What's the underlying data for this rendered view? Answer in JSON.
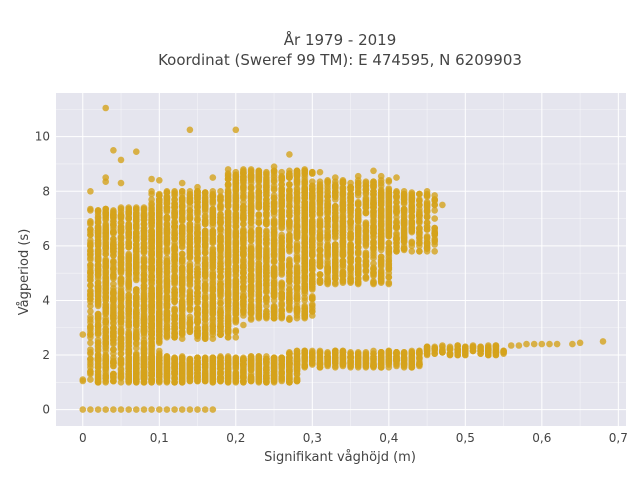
{
  "chart_data": {
    "type": "scatter",
    "title_line1": "År 1979 - 2019",
    "title_line2": "Koordinat (Sweref 99 TM): E 474595, N 6209903",
    "xlabel": "Signifikant våghöjd (m)",
    "ylabel": "Vågperiod (s)",
    "xlim": [
      -0.035,
      0.71
    ],
    "ylim": [
      -0.6,
      11.6
    ],
    "grid": true,
    "legend": "none",
    "x_ticks": [
      0,
      0.1,
      0.2,
      0.3,
      0.4,
      0.5,
      0.6,
      0.7
    ],
    "x_tick_labels": [
      "0",
      "0,1",
      "0,2",
      "0,3",
      "0,4",
      "0,5",
      "0,6",
      "0,7"
    ],
    "y_ticks": [
      0,
      2,
      4,
      6,
      8,
      10
    ],
    "y_tick_labels": [
      "0",
      "2",
      "4",
      "6",
      "8",
      "10"
    ],
    "colors": {
      "marker": "#d4a21c",
      "plot_bg": "#e5e5ee",
      "grid": "#ffffff"
    },
    "series": [
      {
        "points": [
          [
            0,
            0
          ],
          [
            0.01,
            0
          ],
          [
            0.02,
            0
          ],
          [
            0.03,
            0
          ],
          [
            0.04,
            0
          ],
          [
            0.05,
            0
          ],
          [
            0.06,
            0
          ],
          [
            0.07,
            0
          ],
          [
            0.08,
            0
          ],
          [
            0.09,
            0
          ],
          [
            0.1,
            0
          ],
          [
            0.11,
            0
          ],
          [
            0.12,
            0
          ],
          [
            0.13,
            0
          ],
          [
            0.14,
            0
          ],
          [
            0.15,
            0
          ],
          [
            0.16,
            0
          ],
          [
            0.17,
            0
          ],
          [
            0,
            1.05
          ],
          [
            0,
            1.1
          ],
          [
            0,
            2.75
          ],
          [
            0.03,
            11.05
          ],
          [
            0.14,
            10.25
          ],
          [
            0.2,
            10.25
          ],
          [
            0.04,
            9.5
          ],
          [
            0.07,
            9.45
          ],
          [
            0.05,
            9.15
          ],
          [
            0.01,
            8.0
          ],
          [
            0.03,
            8.5
          ],
          [
            0.03,
            8.35
          ],
          [
            0.05,
            8.3
          ],
          [
            0.09,
            8.45
          ],
          [
            0.1,
            8.4
          ],
          [
            0.13,
            8.3
          ],
          [
            0.14,
            8.0
          ],
          [
            0.15,
            8.15
          ],
          [
            0.17,
            8.5
          ],
          [
            0.19,
            8.6
          ],
          [
            0.21,
            8.5
          ],
          [
            0.23,
            8.5
          ],
          [
            0.25,
            8.9
          ],
          [
            0.27,
            9.35
          ],
          [
            0.29,
            8.8
          ],
          [
            0.3,
            8.65
          ],
          [
            0.31,
            8.7
          ],
          [
            0.33,
            8.5
          ],
          [
            0.36,
            8.55
          ],
          [
            0.38,
            8.75
          ],
          [
            0.39,
            8.55
          ],
          [
            0.41,
            8.5
          ],
          [
            0.45,
            7.9
          ],
          [
            0.46,
            7.7
          ],
          [
            0.47,
            7.5
          ],
          [
            0.44,
            6.9
          ],
          [
            0.43,
            6.7
          ],
          [
            0.46,
            7.3
          ],
          [
            0.08,
            2.95
          ],
          [
            0.1,
            2.75
          ],
          [
            0.12,
            3.0
          ],
          [
            0.13,
            3.15
          ],
          [
            0.16,
            3.3
          ],
          [
            0.17,
            3.5
          ],
          [
            0.2,
            3.85
          ],
          [
            0.21,
            3.1
          ],
          [
            0.25,
            4.0
          ],
          [
            0.28,
            4.3
          ],
          [
            0.3,
            4.6
          ],
          [
            0.33,
            5.3
          ],
          [
            0.36,
            5.5
          ],
          [
            0.38,
            5.55
          ],
          [
            0.44,
            2.05
          ],
          [
            0.47,
            2.15
          ],
          [
            0.5,
            2.25
          ],
          [
            0.52,
            2.3
          ],
          [
            0.54,
            2.3
          ],
          [
            0.56,
            2.35
          ],
          [
            0.57,
            2.35
          ],
          [
            0.58,
            2.4
          ],
          [
            0.59,
            2.4
          ],
          [
            0.6,
            2.4
          ],
          [
            0.61,
            2.4
          ],
          [
            0.62,
            2.4
          ],
          [
            0.64,
            2.4
          ],
          [
            0.65,
            2.45
          ],
          [
            0.68,
            2.5
          ]
        ],
        "generated_clusters": [
          {
            "x": [
              0.01,
              0.1
            ],
            "y": [
              1.0,
              7.4
            ],
            "n": 1400
          },
          {
            "x": [
              0.09,
              0.2
            ],
            "y": [
              2.6,
              8.0
            ],
            "n": 1300
          },
          {
            "x": [
              0.19,
              0.3
            ],
            "y": [
              3.3,
              8.8
            ],
            "n": 1300
          },
          {
            "x": [
              0.29,
              0.4
            ],
            "y": [
              4.6,
              8.4
            ],
            "n": 900
          },
          {
            "x": [
              0.39,
              0.46
            ],
            "y": [
              5.8,
              8.0
            ],
            "n": 300
          },
          {
            "x": [
              0.06,
              0.28
            ],
            "y": [
              1.0,
              1.95
            ],
            "n": 900
          },
          {
            "x": [
              0.27,
              0.44
            ],
            "y": [
              1.55,
              2.15
            ],
            "n": 400
          },
          {
            "x": [
              0.44,
              0.55
            ],
            "y": [
              2.0,
              2.35
            ],
            "n": 120
          }
        ]
      }
    ]
  }
}
